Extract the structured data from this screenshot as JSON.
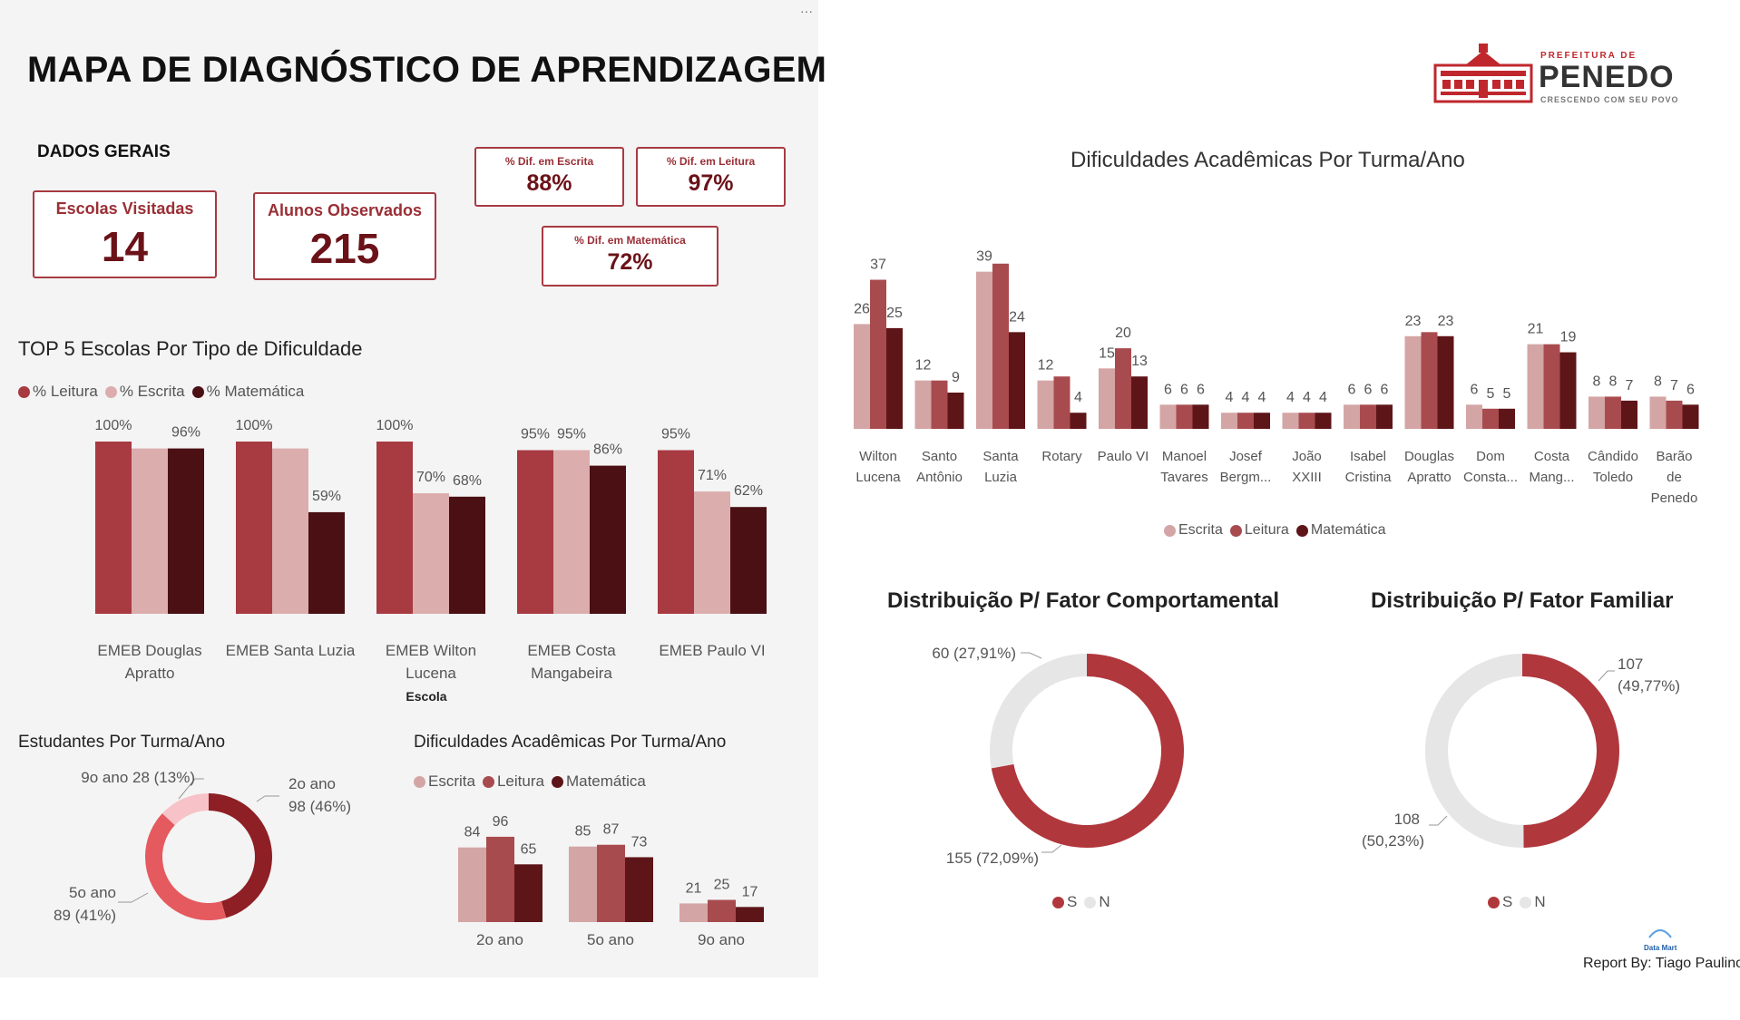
{
  "menu_dots": "···",
  "title": "MAPA DE DIAGNÓSTICO DE APRENDIZAGEM",
  "dados_gerais": "DADOS GERAIS",
  "kpis": {
    "escolas_visitadas": {
      "label": "Escolas Visitadas",
      "value": "14"
    },
    "alunos_observados": {
      "label": "Alunos Observados",
      "value": "215"
    },
    "dif_escrita": {
      "label": "% Dif. em Escrita",
      "value": "88%"
    },
    "dif_leitura": {
      "label": "% Dif. em Leitura",
      "value": "97%"
    },
    "dif_matematica": {
      "label": "% Dif. em Matemática",
      "value": "72%"
    }
  },
  "logo": {
    "top": "PREFEITURA DE",
    "name": "PENEDO",
    "tagline": "CRESCENDO COM SEU POVO",
    "brand_color": "#c0272d"
  },
  "footer": {
    "report_by": "Report By: Tiago Paulino",
    "data_mart": "Data Mart"
  },
  "colors": {
    "leitura": "#a83a42",
    "escrita": "#dcadad",
    "matematica": "#4a1014",
    "escrita_alt": "#d4a5a5",
    "leitura_alt": "#a84b4e",
    "matematica_alt": "#5e1518",
    "donut_red": "#b0373c",
    "donut_grey": "#e6e6e6"
  },
  "chart_data": [
    {
      "id": "top5",
      "type": "bar",
      "title": "TOP 5 Escolas Por Tipo de Dificuldade",
      "xlabel": "Escola",
      "legend_position": "top-left",
      "categories": [
        [
          "EMEB Douglas",
          "Apratto"
        ],
        [
          "EMEB Santa Luzia"
        ],
        [
          "EMEB Wilton",
          "Lucena"
        ],
        [
          "EMEB Costa",
          "Mangabeira"
        ],
        [
          "EMEB Paulo VI"
        ]
      ],
      "series": [
        {
          "name": "% Leitura",
          "values": [
            100,
            100,
            100,
            95,
            95
          ],
          "labels": [
            "100%",
            "100%",
            "100%",
            "95%",
            "95%"
          ]
        },
        {
          "name": "% Escrita",
          "values": [
            96,
            96,
            70,
            95,
            71
          ],
          "labels": [
            "",
            "",
            "70%",
            "95%",
            "71%"
          ]
        },
        {
          "name": "% Matemática",
          "values": [
            96,
            59,
            68,
            86,
            62
          ],
          "labels": [
            "96%",
            "59%",
            "68%",
            "86%",
            "62%"
          ]
        }
      ],
      "ylim": [
        0,
        100
      ]
    },
    {
      "id": "estudantes",
      "type": "pie",
      "title": "Estudantes Por Turma/Ano",
      "slices": [
        {
          "name": "2o ano",
          "value": 98,
          "label1": "2o ano",
          "label2": "98 (46%)"
        },
        {
          "name": "5o ano",
          "value": 89,
          "label1": "5o ano",
          "label2": "89 (41%)"
        },
        {
          "name": "9o ano",
          "value": 28,
          "label1": "9o ano 28 (13%)",
          "label2": ""
        }
      ]
    },
    {
      "id": "dif_ano",
      "type": "bar",
      "title": "Dificuldades Acadêmicas Por Turma/Ano",
      "legend_position": "top-left",
      "categories": [
        "2o ano",
        "5o ano",
        "9o ano"
      ],
      "series": [
        {
          "name": "Escrita",
          "values": [
            84,
            85,
            21
          ]
        },
        {
          "name": "Leitura",
          "values": [
            96,
            87,
            25
          ]
        },
        {
          "name": "Matemática",
          "values": [
            65,
            73,
            17
          ]
        }
      ],
      "ylim": [
        0,
        100
      ]
    },
    {
      "id": "dif_turma",
      "type": "bar",
      "title": "Dificuldades Acadêmicas Por Turma/Ano",
      "legend_position": "bottom-center",
      "categories": [
        [
          "Wilton",
          "Lucena"
        ],
        [
          "Santo",
          "Antônio"
        ],
        [
          "Santa",
          "Luzia"
        ],
        [
          "Rotary"
        ],
        [
          "Paulo VI"
        ],
        [
          "Manoel",
          "Tavares"
        ],
        [
          "Josef",
          "Bergm..."
        ],
        [
          "João",
          "XXIII"
        ],
        [
          "Isabel",
          "Cristina"
        ],
        [
          "Douglas",
          "Apratto"
        ],
        [
          "Dom",
          "Consta..."
        ],
        [
          "Costa",
          "Mang..."
        ],
        [
          "Cândido",
          "Toledo"
        ],
        [
          "Barão",
          "de",
          "Penedo"
        ]
      ],
      "series": [
        {
          "name": "Escrita",
          "values": [
            26,
            12,
            39,
            12,
            15,
            6,
            4,
            4,
            6,
            23,
            6,
            21,
            8,
            8
          ]
        },
        {
          "name": "Leitura",
          "values": [
            37,
            12,
            41,
            13,
            20,
            6,
            4,
            4,
            6,
            24,
            5,
            21,
            8,
            7
          ]
        },
        {
          "name": "Matemática",
          "values": [
            25,
            9,
            24,
            4,
            13,
            6,
            4,
            4,
            6,
            23,
            5,
            19,
            7,
            6
          ]
        }
      ],
      "labels": [
        [
          "26",
          "12",
          "39",
          "12",
          "15",
          "6",
          "4",
          "4",
          "6",
          "23",
          "6",
          "21",
          "8",
          "8"
        ],
        [
          "37",
          "",
          "",
          "",
          "20",
          "6",
          "4",
          "4",
          "6",
          "",
          "5",
          "",
          "8",
          "7"
        ],
        [
          "25",
          "9",
          "24",
          "4",
          "13",
          "6",
          "4",
          "4",
          "6",
          "23",
          "5",
          "19",
          "7",
          "6"
        ]
      ],
      "ylim": [
        0,
        45
      ]
    },
    {
      "id": "comportamental",
      "type": "pie",
      "title": "Distribuição P/ Fator Comportamental",
      "legend": [
        "S",
        "N"
      ],
      "slices": [
        {
          "name": "S",
          "value": 155,
          "label1": "155 (72,09%)",
          "label2": ""
        },
        {
          "name": "N",
          "value": 60,
          "label1": "60 (27,91%)",
          "label2": ""
        }
      ]
    },
    {
      "id": "familiar",
      "type": "pie",
      "title": "Distribuição P/ Fator Familiar",
      "legend": [
        "S",
        "N"
      ],
      "slices": [
        {
          "name": "S",
          "value": 107,
          "label1": "107",
          "label2": "(49,77%)"
        },
        {
          "name": "N",
          "value": 108,
          "label1": "108",
          "label2": "(50,23%)"
        }
      ]
    }
  ]
}
